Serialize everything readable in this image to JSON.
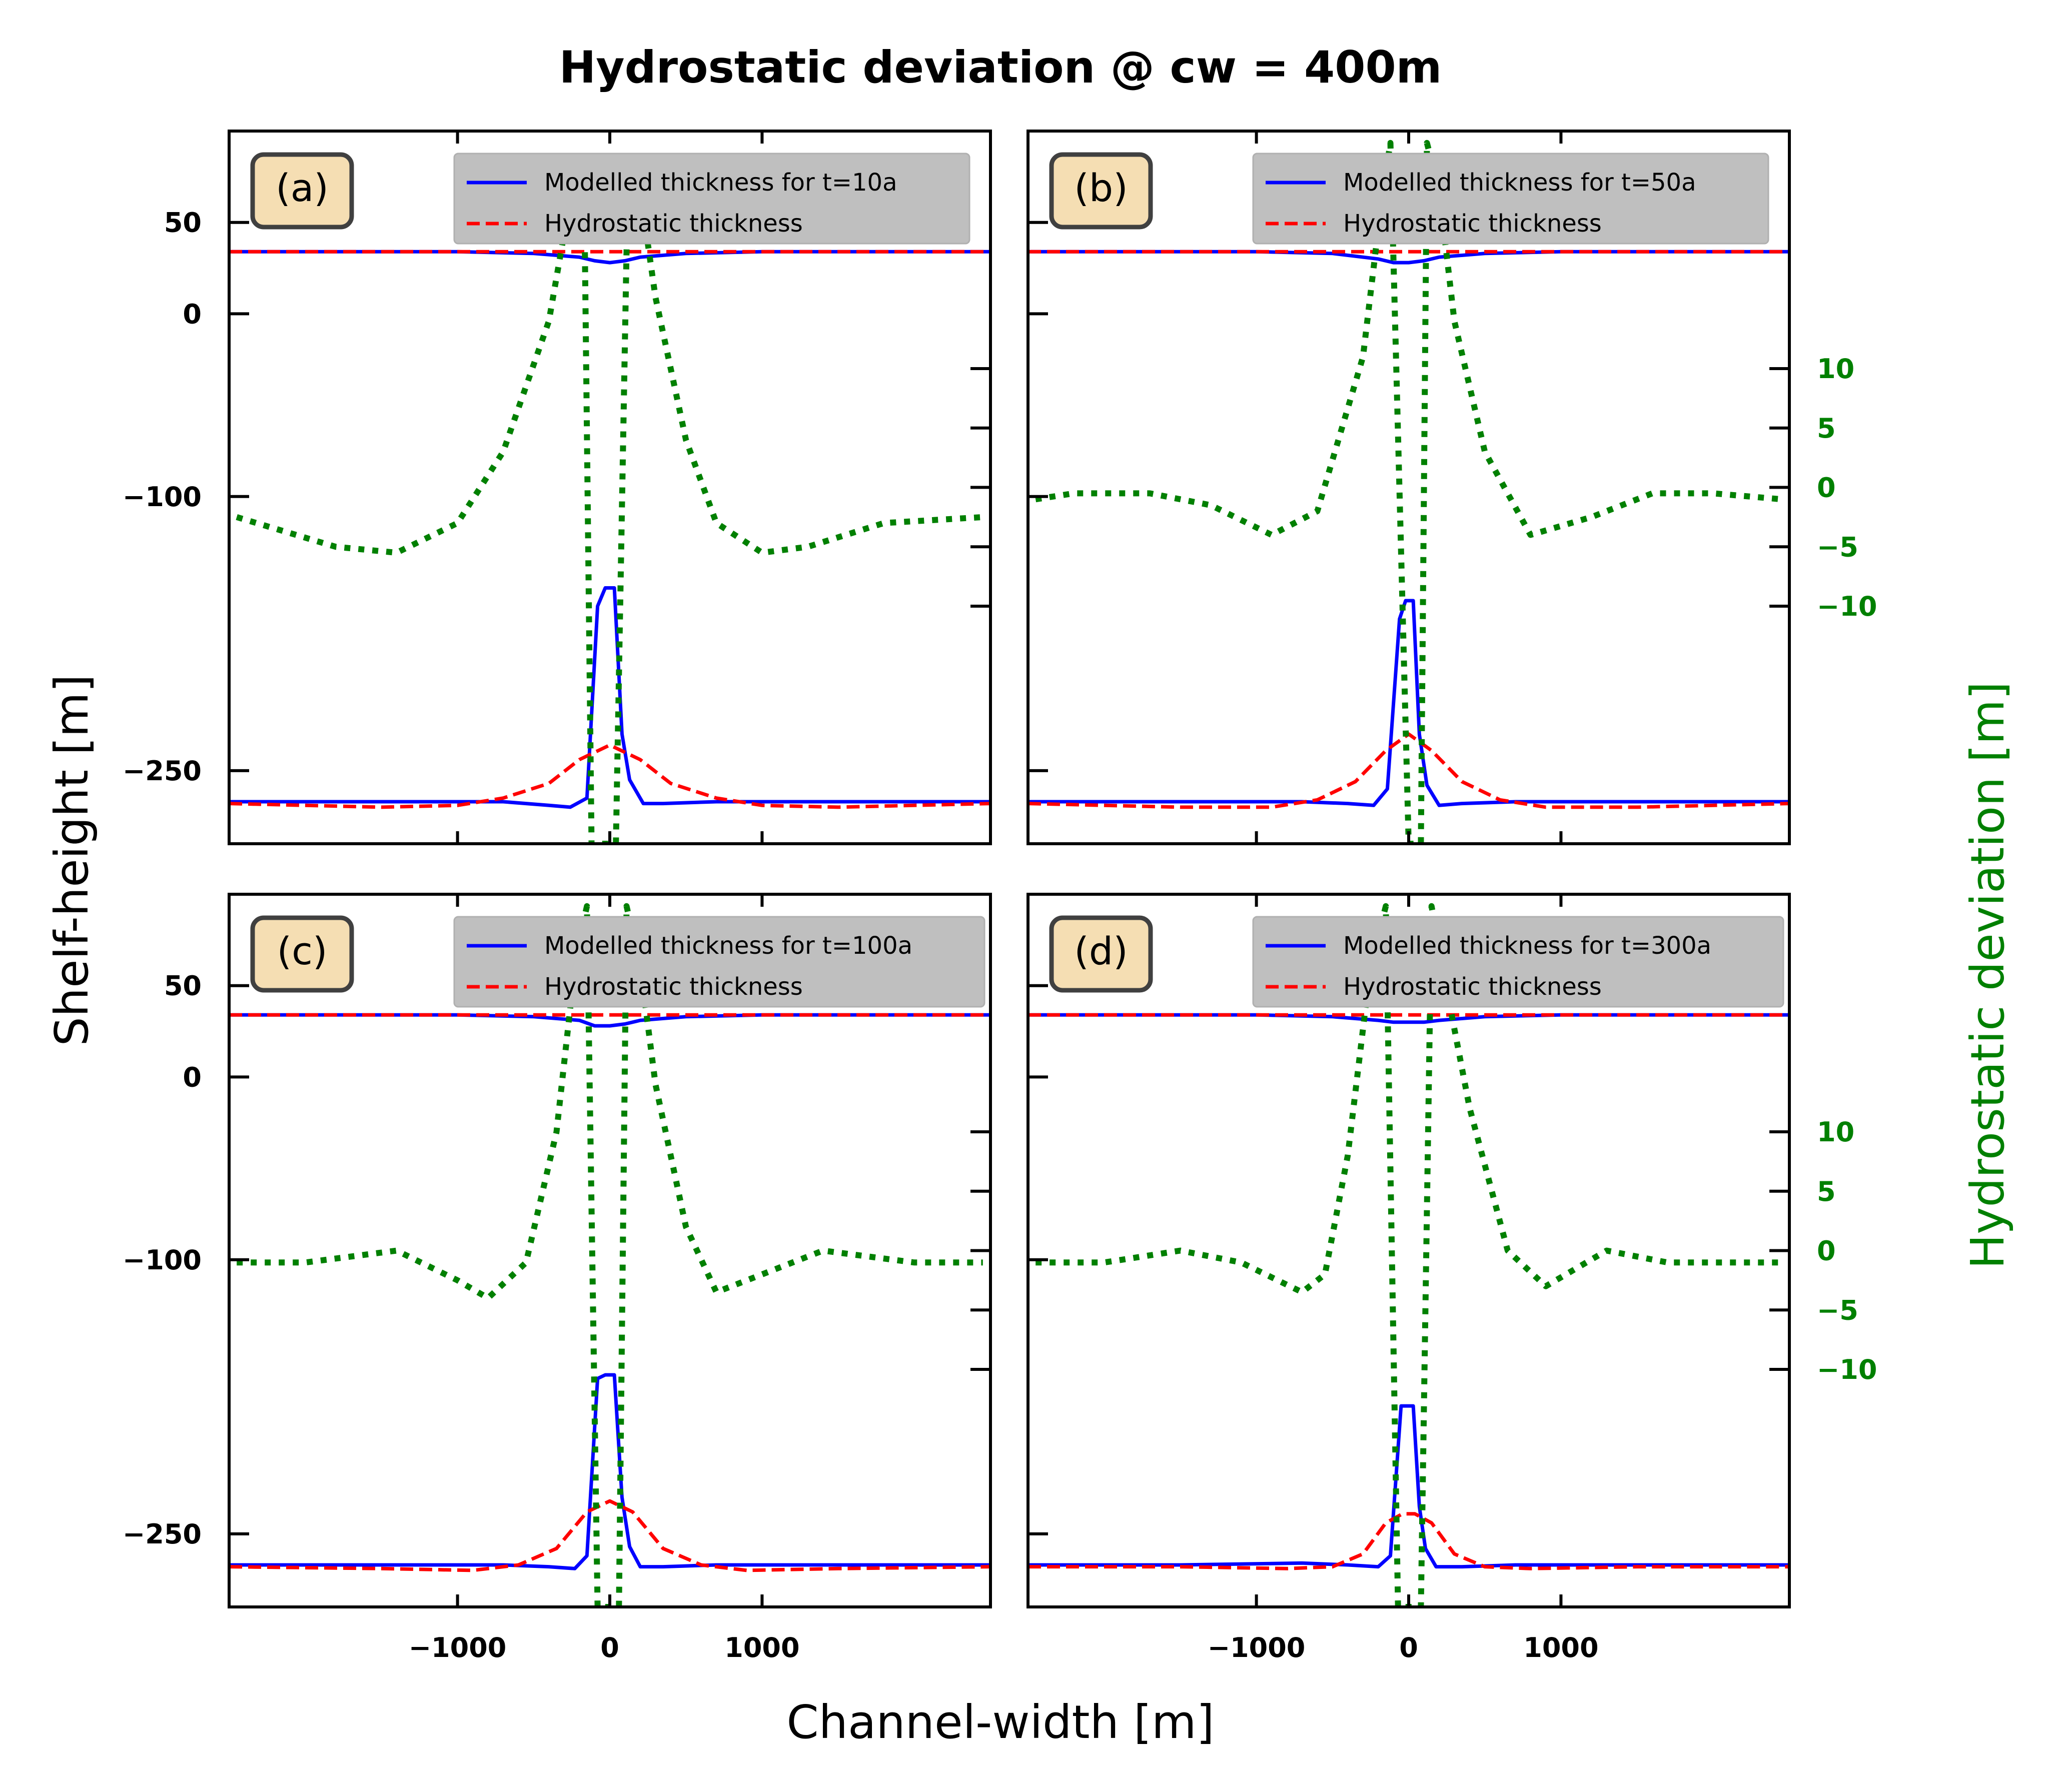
{
  "figure": {
    "title": "Hydrostatic deviation @ cw = 400m",
    "xlabel": "Channel-width [m]",
    "ylabel_left": "Shelf-height [m]",
    "ylabel_right": "Hydrostatic deviation [m]"
  },
  "colors": {
    "modelled": "#0000ff",
    "hydrostatic": "#ff0000",
    "deviation": "#008000",
    "panel_label_bg": "#f5deb3",
    "legend_bg": "#bfbfbf"
  },
  "chart_data": [
    {
      "type": "line",
      "panel_label": "(a)",
      "x_ticks": [
        -1000,
        0,
        1000
      ],
      "y_left_ticks": [
        50,
        0,
        -100,
        -250
      ],
      "y_right_ticks": [
        10,
        5,
        0,
        -5,
        -10
      ],
      "xlim": [
        -2500,
        2500
      ],
      "ylim_left": [
        -290,
        100
      ],
      "ylim_right": [
        -30,
        30
      ],
      "series": [
        {
          "name": "Modelled thickness for t=10a",
          "style": "solid",
          "color": "#0000ff",
          "top": {
            "x": [
              -2500,
              -2000,
              -1000,
              -500,
              -200,
              -100,
              0,
              100,
              200,
              500,
              1000,
              2000,
              2500
            ],
            "y": [
              34,
              34,
              34,
              33,
              31,
              29,
              28,
              29,
              31,
              33,
              34,
              34,
              34
            ]
          },
          "bottom": {
            "x": [
              -2500,
              -1500,
              -700,
              -400,
              -260,
              -150,
              -80,
              -30,
              30,
              80,
              130,
              220,
              350,
              700,
              1500,
              2500
            ],
            "y": [
              -267,
              -267,
              -267,
              -269,
              -270,
              -265,
              -160,
              -150,
              -150,
              -230,
              -255,
              -268,
              -268,
              -267,
              -267,
              -267
            ]
          }
        },
        {
          "name": "Hydrostatic thickness",
          "style": "dashed",
          "color": "#ff0000",
          "top": {
            "x": [
              -2500,
              2500
            ],
            "y": [
              34,
              34
            ]
          },
          "bottom": {
            "x": [
              -2500,
              -1500,
              -1000,
              -700,
              -400,
              -200,
              0,
              200,
              400,
              700,
              1000,
              1500,
              2500
            ],
            "y": [
              -268,
              -270,
              -269,
              -265,
              -257,
              -244,
              -236,
              -244,
              -257,
              -265,
              -269,
              -270,
              -268
            ]
          }
        },
        {
          "name": "Hydrostatic deviation",
          "style": "dotted",
          "color": "#008000",
          "x": [
            -2450,
            -1800,
            -1400,
            -1000,
            -700,
            -400,
            -250,
            -170,
            -120,
            40,
            120,
            200,
            300,
            500,
            700,
            1000,
            1300,
            1800,
            2450
          ],
          "y": [
            -2.5,
            -5,
            -5.5,
            -3,
            3,
            14,
            25,
            27,
            -30,
            -30,
            27,
            25,
            16,
            4,
            -3,
            -5.5,
            -5,
            -3,
            -2.5
          ]
        }
      ]
    },
    {
      "type": "line",
      "panel_label": "(b)",
      "x_ticks": [
        -1000,
        0,
        1000
      ],
      "y_left_ticks": [
        50,
        0,
        -100,
        -250
      ],
      "y_right_ticks": [
        10,
        5,
        0,
        -5,
        -10
      ],
      "xlim": [
        -2500,
        2500
      ],
      "ylim_left": [
        -290,
        100
      ],
      "ylim_right": [
        -30,
        30
      ],
      "series": [
        {
          "name": "Modelled thickness for t=50a",
          "style": "solid",
          "color": "#0000ff",
          "top": {
            "x": [
              -2500,
              -2000,
              -1000,
              -500,
              -200,
              -100,
              0,
              100,
              200,
              500,
              1000,
              2000,
              2500
            ],
            "y": [
              34,
              34,
              34,
              33,
              30,
              28,
              28,
              29,
              31,
              33,
              34,
              34,
              34
            ]
          },
          "bottom": {
            "x": [
              -2500,
              -1500,
              -700,
              -400,
              -230,
              -140,
              -60,
              -20,
              30,
              70,
              120,
              200,
              350,
              700,
              1500,
              2500
            ],
            "y": [
              -267,
              -267,
              -267,
              -268,
              -269,
              -260,
              -167,
              -157,
              -157,
              -230,
              -258,
              -269,
              -268,
              -267,
              -267,
              -267
            ]
          }
        },
        {
          "name": "Hydrostatic thickness",
          "style": "dashed",
          "color": "#ff0000",
          "top": {
            "x": [
              -2500,
              2500
            ],
            "y": [
              34,
              34
            ]
          },
          "bottom": {
            "x": [
              -2500,
              -1500,
              -900,
              -600,
              -350,
              -150,
              0,
              150,
              350,
              600,
              900,
              1500,
              2500
            ],
            "y": [
              -268,
              -270,
              -270,
              -266,
              -256,
              -239,
              -230,
              -239,
              -256,
              -266,
              -270,
              -270,
              -268
            ]
          }
        },
        {
          "name": "Hydrostatic deviation",
          "style": "dotted",
          "color": "#008000",
          "x": [
            -2450,
            -2200,
            -1700,
            -1300,
            -900,
            -600,
            -300,
            -170,
            -120,
            0,
            80,
            120,
            200,
            300,
            500,
            800,
            1200,
            1600,
            2000,
            2450
          ],
          "y": [
            -1,
            -0.5,
            -0.5,
            -1.5,
            -4,
            -2,
            11,
            25,
            29,
            -30,
            -30,
            29,
            25,
            14,
            3,
            -4,
            -2.5,
            -0.5,
            -0.5,
            -1
          ]
        }
      ]
    },
    {
      "type": "line",
      "panel_label": "(c)",
      "x_ticks": [
        -1000,
        0,
        1000
      ],
      "y_left_ticks": [
        50,
        0,
        -100,
        -250
      ],
      "y_right_ticks": [
        10,
        5,
        0,
        -5,
        -10
      ],
      "xlim": [
        -2500,
        2500
      ],
      "ylim_left": [
        -290,
        100
      ],
      "ylim_right": [
        -30,
        30
      ],
      "series": [
        {
          "name": "Modelled thickness for t=100a",
          "style": "solid",
          "color": "#0000ff",
          "top": {
            "x": [
              -2500,
              -2000,
              -1000,
              -500,
              -200,
              -100,
              0,
              100,
              200,
              500,
              1000,
              2000,
              2500
            ],
            "y": [
              34,
              34,
              34,
              33,
              31,
              28,
              28,
              29,
              31,
              33,
              34,
              34,
              34
            ]
          },
          "bottom": {
            "x": [
              -2500,
              -1500,
              -700,
              -400,
              -230,
              -150,
              -80,
              -30,
              30,
              80,
              130,
              200,
              350,
              700,
              1500,
              2500
            ],
            "y": [
              -267,
              -267,
              -267,
              -268,
              -269,
              -262,
              -165,
              -163,
              -163,
              -230,
              -257,
              -268,
              -268,
              -267,
              -267,
              -267
            ]
          }
        },
        {
          "name": "Hydrostatic thickness",
          "style": "dashed",
          "color": "#ff0000",
          "top": {
            "x": [
              -2500,
              2500
            ],
            "y": [
              34,
              34
            ]
          },
          "bottom": {
            "x": [
              -2500,
              -1500,
              -900,
              -600,
              -350,
              -150,
              0,
              150,
              350,
              600,
              900,
              1500,
              2500
            ],
            "y": [
              -268,
              -269,
              -270,
              -267,
              -258,
              -238,
              -232,
              -238,
              -258,
              -267,
              -270,
              -269,
              -268
            ]
          }
        },
        {
          "name": "Hydrostatic deviation",
          "style": "dotted",
          "color": "#008000",
          "x": [
            -2450,
            -2000,
            -1400,
            -1000,
            -800,
            -550,
            -350,
            -220,
            -150,
            -80,
            60,
            110,
            200,
            300,
            500,
            700,
            1000,
            1400,
            2000,
            2450
          ],
          "y": [
            -1,
            -1,
            0,
            -2.5,
            -4,
            -1,
            10,
            25,
            29,
            -30,
            -30,
            29,
            24,
            14,
            2,
            -3.5,
            -2,
            0,
            -1,
            -1
          ]
        }
      ]
    },
    {
      "type": "line",
      "panel_label": "(d)",
      "x_ticks": [
        -1000,
        0,
        1000
      ],
      "y_left_ticks": [
        50,
        0,
        -100,
        -250
      ],
      "y_right_ticks": [
        10,
        5,
        0,
        -5,
        -10
      ],
      "xlim": [
        -2500,
        2500
      ],
      "ylim_left": [
        -290,
        100
      ],
      "ylim_right": [
        -30,
        30
      ],
      "series": [
        {
          "name": "Modelled thickness for t=300a",
          "style": "solid",
          "color": "#0000ff",
          "top": {
            "x": [
              -2500,
              -2000,
              -1000,
              -500,
              -200,
              -100,
              0,
              100,
              200,
              500,
              1000,
              2000,
              2500
            ],
            "y": [
              34,
              34,
              34,
              33,
              31,
              30,
              30,
              30,
              31,
              33,
              34,
              34,
              34
            ]
          },
          "bottom": {
            "x": [
              -2500,
              -1500,
              -700,
              -400,
              -200,
              -120,
              -50,
              -10,
              30,
              70,
              110,
              180,
              350,
              700,
              1500,
              2500
            ],
            "y": [
              -267,
              -267,
              -266,
              -267,
              -268,
              -262,
              -180,
              -180,
              -180,
              -235,
              -258,
              -268,
              -268,
              -267,
              -267,
              -267
            ]
          }
        },
        {
          "name": "Hydrostatic thickness",
          "style": "dashed",
          "color": "#ff0000",
          "top": {
            "x": [
              -2500,
              2500
            ],
            "y": [
              34,
              34
            ]
          },
          "bottom": {
            "x": [
              -2500,
              -1500,
              -800,
              -500,
              -300,
              -150,
              -40,
              40,
              150,
              300,
              500,
              800,
              1500,
              2500
            ],
            "y": [
              -268,
              -268,
              -269,
              -268,
              -261,
              -244,
              -239,
              -239,
              -244,
              -261,
              -268,
              -269,
              -268,
              -268
            ]
          }
        },
        {
          "name": "Hydrostatic deviation",
          "style": "dotted",
          "color": "#008000",
          "x": [
            -2450,
            -2000,
            -1500,
            -1100,
            -700,
            -550,
            -400,
            -250,
            -150,
            -70,
            80,
            150,
            250,
            400,
            650,
            900,
            1300,
            1700,
            2200,
            2450
          ],
          "y": [
            -1,
            -1,
            0,
            -1,
            -3.5,
            -2,
            8,
            24,
            29,
            -30,
            -30,
            29,
            22,
            12,
            0,
            -3,
            0,
            -1,
            -1,
            -1
          ]
        }
      ]
    }
  ]
}
